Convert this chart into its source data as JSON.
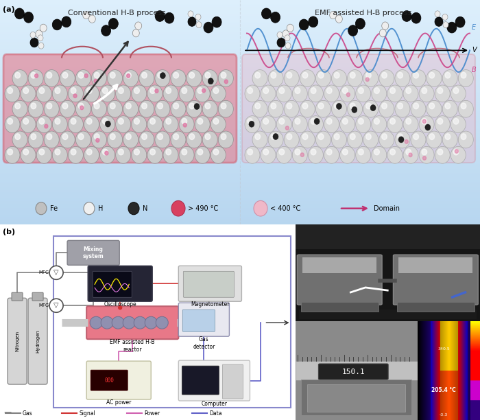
{
  "fig_width": 7.0,
  "fig_height": 6.12,
  "dpi": 100,
  "panel_a_bg": "#b8d4e8",
  "panel_a_top": "#d8eaf8",
  "panel_b_bg": "#f0f0f0",
  "left_title": "Conventional H-B process",
  "right_title": "EMF assisted H-B process",
  "legend_items": [
    "Fe",
    "H",
    "N",
    "> 490 °C",
    "< 400 °C",
    "Domain"
  ],
  "legend_colors_circle": [
    "#c0c0c0",
    "#f0f0f0",
    "#282828",
    "#d84060",
    "#f0b8c8",
    "#c03070"
  ],
  "schematic_legend": [
    "Gas",
    "Signal",
    "Power",
    "Data"
  ],
  "schematic_legend_colors": [
    "#808080",
    "#d03030",
    "#d060b0",
    "#6060c8"
  ]
}
